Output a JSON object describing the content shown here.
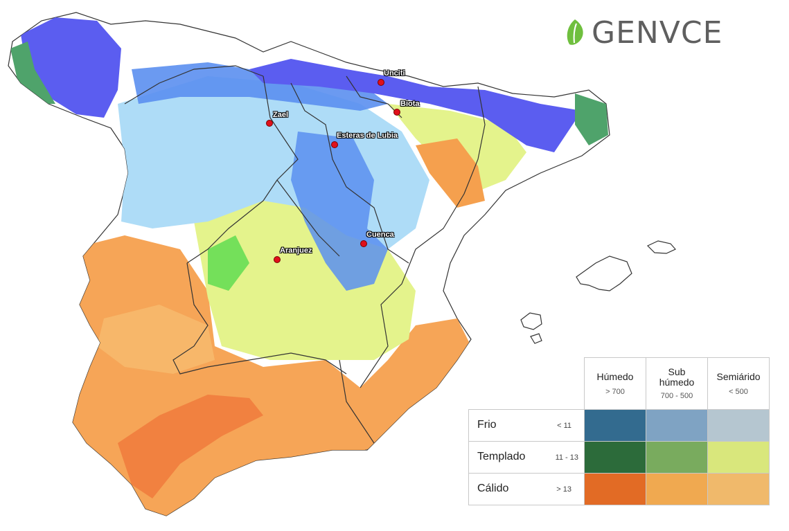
{
  "brand": {
    "name": "GENVCE",
    "leaf_color": "#6fbf3e",
    "text_color": "#5f5f5f"
  },
  "sites": [
    {
      "name": "Unciti"
    },
    {
      "name": "Biota"
    },
    {
      "name": "Zael"
    },
    {
      "name": "Esteras de Lubia"
    },
    {
      "name": "Cuenca"
    },
    {
      "name": "Aranjuez"
    }
  ],
  "legend": {
    "columns": [
      {
        "name": "Húmedo",
        "range": "> 700"
      },
      {
        "name_top": "Sub",
        "name_bottom": "húmedo",
        "range": "700 - 500"
      },
      {
        "name": "Semiárido",
        "range": "< 500"
      }
    ],
    "rows": [
      {
        "name": "Frio",
        "range": "< 11",
        "colors": [
          "#336b8f",
          "#7fa3c3",
          "#b5c6d0"
        ]
      },
      {
        "name": "Templado",
        "range": "11 - 13",
        "colors": [
          "#2c6b3a",
          "#79ab5e",
          "#d9e77c"
        ]
      },
      {
        "name": "Cálido",
        "range": "> 13",
        "colors": [
          "#e26b25",
          "#f0a950",
          "#f0b96b"
        ]
      }
    ]
  },
  "map_colors": {
    "land": "#ffffff",
    "border": "#333333",
    "frio_humedo": "#5b5df0",
    "frio_subhumedo": "#5b8ff0",
    "frio_semiarido": "#aedcf7",
    "templado_humedo": "#4fa36b",
    "templado_subhumedo": "#74e05a",
    "templado_semiarido": "#e4f38c",
    "calido_subhumedo": "#f5a04e",
    "calido_semiarido": "#f7b76a",
    "calido_humedo": "#f07a3c"
  }
}
